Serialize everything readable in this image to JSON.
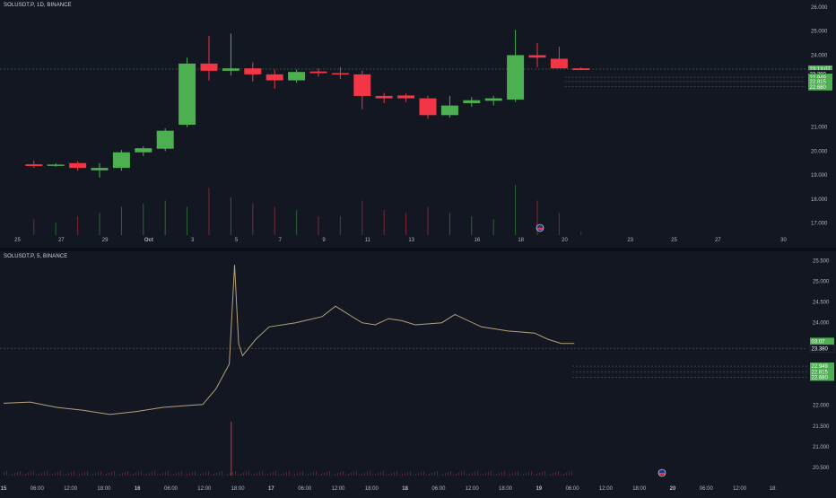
{
  "colors": {
    "background": "#131722",
    "up": "#4caf50",
    "down": "#f23645",
    "text": "#d1d4dc",
    "axis_text": "#b2b5be",
    "price_tag": "#4caf50"
  },
  "event_icon": "us-flag-event-icon",
  "chart_data": [
    {
      "type": "candlestick",
      "title": "SOLUSDT.P, 1D, BINANCE",
      "interval": "1D",
      "ylim": [
        16.5,
        26.0
      ],
      "y_ticks": [
        {
          "v": 26.0,
          "label": "26.000"
        },
        {
          "v": 25.0,
          "label": "25.000"
        },
        {
          "v": 24.0,
          "label": "24.000"
        },
        {
          "v": 21.0,
          "label": "21.000"
        },
        {
          "v": 20.0,
          "label": "20.000"
        },
        {
          "v": 19.0,
          "label": "19.000"
        },
        {
          "v": 18.0,
          "label": "18.000"
        },
        {
          "v": 17.0,
          "label": "17.000"
        }
      ],
      "x_ticks": [
        {
          "i": 0,
          "label": "25"
        },
        {
          "i": 2,
          "label": "27"
        },
        {
          "i": 4,
          "label": "29"
        },
        {
          "i": 6,
          "label": "Oct"
        },
        {
          "i": 8,
          "label": "3"
        },
        {
          "i": 10,
          "label": "5"
        },
        {
          "i": 12,
          "label": "7"
        },
        {
          "i": 14,
          "label": "9"
        },
        {
          "i": 16,
          "label": "11"
        },
        {
          "i": 18,
          "label": "13"
        },
        {
          "i": 21,
          "label": "16"
        },
        {
          "i": 23,
          "label": "18"
        },
        {
          "i": 25,
          "label": "20"
        },
        {
          "i": 28,
          "label": "23"
        },
        {
          "i": 30,
          "label": "25"
        },
        {
          "i": 32,
          "label": "27"
        },
        {
          "i": 35,
          "label": "30"
        }
      ],
      "candles": [
        {
          "o": 19.45,
          "h": 19.6,
          "l": 19.3,
          "c": 19.38,
          "vol": 0.25
        },
        {
          "o": 19.42,
          "h": 19.5,
          "l": 19.35,
          "c": 19.44,
          "vol": 0.2
        },
        {
          "o": 19.5,
          "h": 19.58,
          "l": 19.18,
          "c": 19.3,
          "vol": 0.3
        },
        {
          "o": 19.2,
          "h": 19.5,
          "l": 18.9,
          "c": 19.3,
          "vol": 0.35
        },
        {
          "o": 19.3,
          "h": 20.05,
          "l": 19.18,
          "c": 19.95,
          "vol": 0.45
        },
        {
          "o": 19.95,
          "h": 20.2,
          "l": 19.8,
          "c": 20.12,
          "vol": 0.5
        },
        {
          "o": 20.1,
          "h": 20.95,
          "l": 20.0,
          "c": 20.85,
          "vol": 0.55
        },
        {
          "o": 21.1,
          "h": 23.9,
          "l": 21.0,
          "c": 23.65,
          "vol": 0.45
        },
        {
          "o": 23.65,
          "h": 24.8,
          "l": 22.95,
          "c": 23.35,
          "vol": 0.75
        },
        {
          "o": 23.35,
          "h": 24.9,
          "l": 23.15,
          "c": 23.45,
          "vol": 0.6
        },
        {
          "o": 23.45,
          "h": 23.7,
          "l": 22.9,
          "c": 23.2,
          "vol": 0.5
        },
        {
          "o": 23.2,
          "h": 23.4,
          "l": 22.6,
          "c": 22.95,
          "vol": 0.45
        },
        {
          "o": 22.95,
          "h": 23.4,
          "l": 22.85,
          "c": 23.3,
          "vol": 0.4
        },
        {
          "o": 23.32,
          "h": 23.45,
          "l": 23.1,
          "c": 23.25,
          "vol": 0.3
        },
        {
          "o": 23.25,
          "h": 23.5,
          "l": 23.0,
          "c": 23.2,
          "vol": 0.3
        },
        {
          "o": 23.2,
          "h": 23.35,
          "l": 21.75,
          "c": 22.3,
          "vol": 0.55
        },
        {
          "o": 22.3,
          "h": 22.42,
          "l": 22.0,
          "c": 22.2,
          "vol": 0.4
        },
        {
          "o": 22.32,
          "h": 22.4,
          "l": 22.05,
          "c": 22.2,
          "vol": 0.35
        },
        {
          "o": 22.2,
          "h": 22.3,
          "l": 21.35,
          "c": 21.5,
          "vol": 0.45
        },
        {
          "o": 21.5,
          "h": 22.3,
          "l": 21.4,
          "c": 21.9,
          "vol": 0.35
        },
        {
          "o": 22.0,
          "h": 22.25,
          "l": 21.85,
          "c": 22.12,
          "vol": 0.3
        },
        {
          "o": 22.1,
          "h": 22.3,
          "l": 21.9,
          "c": 22.2,
          "vol": 0.25
        },
        {
          "o": 22.15,
          "h": 25.05,
          "l": 22.05,
          "c": 24.0,
          "vol": 0.8
        },
        {
          "o": 24.0,
          "h": 24.5,
          "l": 23.5,
          "c": 23.9,
          "vol": 0.55
        },
        {
          "o": 23.85,
          "h": 24.35,
          "l": 23.45,
          "c": 23.45,
          "vol": 0.35
        },
        {
          "o": 23.45,
          "h": 23.5,
          "l": 23.38,
          "c": 23.38,
          "vol": 0.05
        }
      ],
      "price_tags": [
        {
          "v": 23.42,
          "label": "23:13:07",
          "color": "#4caf50"
        },
        {
          "v": 23.26,
          "label": "23.380",
          "color": "#131722"
        },
        {
          "v": 23.08,
          "label": "22.949",
          "color": "#4caf50"
        },
        {
          "v": 22.9,
          "label": "22.815",
          "color": "#4caf50"
        },
        {
          "v": 22.68,
          "label": "22.680",
          "color": "#4caf50"
        }
      ]
    },
    {
      "type": "line",
      "title": "SOLUSDT.P, 5, BINANCE",
      "interval": "5",
      "ylim": [
        20.3,
        25.6
      ],
      "y_ticks": [
        {
          "v": 25.5,
          "label": "25.500"
        },
        {
          "v": 25.0,
          "label": "25.000"
        },
        {
          "v": 24.5,
          "label": "24.500"
        },
        {
          "v": 24.0,
          "label": "24.000"
        },
        {
          "v": 22.0,
          "label": "22.000"
        },
        {
          "v": 21.5,
          "label": "21.500"
        },
        {
          "v": 21.0,
          "label": "21.000"
        },
        {
          "v": 20.5,
          "label": "20.500"
        }
      ],
      "x_ticks": [
        "15",
        "06:00",
        "12:00",
        "18:00",
        "16",
        "06:00",
        "12:00",
        "18:00",
        "17",
        "06:00",
        "12:00",
        "18:00",
        "18",
        "06:00",
        "12:00",
        "18:00",
        "19",
        "06:00",
        "12:00",
        "18:00",
        "20",
        "06:00",
        "12:00",
        "18:"
      ],
      "series": [
        {
          "points": [
            [
              0,
              22.05
            ],
            [
              2,
              22.08
            ],
            [
              4,
              21.95
            ],
            [
              6,
              21.88
            ],
            [
              8,
              21.78
            ],
            [
              10,
              21.85
            ],
            [
              12,
              21.95
            ],
            [
              14,
              22.0
            ],
            [
              15,
              22.02
            ],
            [
              16,
              22.4
            ],
            [
              17,
              23.0
            ],
            [
              17.4,
              25.4
            ],
            [
              17.7,
              23.5
            ],
            [
              18,
              23.2
            ],
            [
              19,
              23.6
            ],
            [
              20,
              23.9
            ],
            [
              22,
              24.0
            ],
            [
              24,
              24.15
            ],
            [
              25,
              24.4
            ],
            [
              26,
              24.2
            ],
            [
              27,
              24.0
            ],
            [
              28,
              23.95
            ],
            [
              29,
              24.1
            ],
            [
              30,
              24.05
            ],
            [
              31,
              23.95
            ],
            [
              33,
              24.0
            ],
            [
              34,
              24.2
            ],
            [
              36,
              23.9
            ],
            [
              38,
              23.8
            ],
            [
              40,
              23.75
            ],
            [
              41,
              23.6
            ],
            [
              42,
              23.5
            ],
            [
              43,
              23.5
            ]
          ]
        }
      ],
      "price_tags": [
        {
          "v": 23.55,
          "label": "03:07",
          "color": "#4caf50"
        },
        {
          "v": 23.38,
          "label": "23.380",
          "color": "#131722"
        },
        {
          "v": 22.949,
          "label": "22.949",
          "color": "#4caf50"
        },
        {
          "v": 22.815,
          "label": "22.815",
          "color": "#4caf50"
        },
        {
          "v": 22.68,
          "label": "22.680",
          "color": "#4caf50"
        }
      ]
    }
  ]
}
